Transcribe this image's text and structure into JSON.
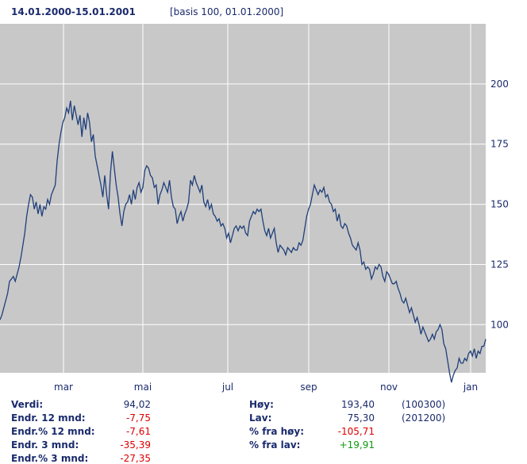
{
  "header": {
    "period": "14.01.2000-15.01.2001",
    "basis": "[basis 100, 01.01.2000]"
  },
  "colors": {
    "plot_bg": "#c8c8c8",
    "grid": "#ffffff",
    "line": "#1f3f7a",
    "label": "#1a2a6c",
    "negative": "#dd0000",
    "positive": "#119911"
  },
  "chart_data": {
    "type": "line",
    "x_tick_labels": [
      "mar",
      "mai",
      "jul",
      "sep",
      "nov",
      "jan"
    ],
    "y_ticks": [
      100,
      125,
      150,
      175,
      200
    ],
    "ylim": [
      80,
      225
    ],
    "grid": true,
    "y_axis_position": "right",
    "series": [
      {
        "values": [
          102,
          104,
          107,
          110,
          113,
          118,
          119,
          120,
          118,
          121,
          124,
          128,
          133,
          138,
          145,
          150,
          154,
          153,
          148,
          151,
          146,
          150,
          145,
          149,
          148,
          152,
          150,
          154,
          156,
          158,
          168,
          175,
          180,
          184,
          186,
          190,
          188,
          193,
          185,
          191,
          187,
          183,
          187,
          178,
          186,
          181,
          188,
          184,
          176,
          179,
          170,
          166,
          162,
          158,
          153,
          162,
          154,
          148,
          163,
          172,
          165,
          158,
          153,
          146,
          141,
          147,
          150,
          151,
          154,
          150,
          156,
          152,
          157,
          159,
          155,
          157,
          164,
          166,
          165,
          162,
          161,
          157,
          158,
          150,
          154,
          156,
          159,
          157,
          155,
          160,
          153,
          149,
          148,
          142,
          145,
          147,
          143,
          146,
          148,
          151,
          160,
          158,
          162,
          159,
          157,
          155,
          158,
          151,
          149,
          152,
          148,
          150,
          146,
          145,
          143,
          144,
          141,
          142,
          140,
          136,
          138,
          134,
          137,
          140,
          141,
          139,
          141,
          140,
          141,
          138,
          137,
          143,
          145,
          147,
          146,
          148,
          147,
          148,
          143,
          139,
          137,
          140,
          136,
          138,
          140,
          134,
          130,
          133,
          132,
          131,
          129,
          132,
          131,
          130,
          132,
          131,
          131,
          134,
          133,
          135,
          140,
          145,
          148,
          150,
          154,
          158,
          156,
          154,
          156,
          155,
          157,
          153,
          154,
          151,
          150,
          147,
          148,
          143,
          146,
          141,
          140,
          142,
          141,
          138,
          136,
          133,
          132,
          131,
          134,
          131,
          125,
          126,
          123,
          124,
          123,
          119,
          121,
          124,
          123,
          125,
          124,
          120,
          118,
          122,
          121,
          119,
          117,
          117,
          118,
          115,
          113,
          110,
          109,
          111,
          108,
          105,
          107,
          104,
          101,
          103,
          100,
          96,
          99,
          97,
          95,
          93,
          94,
          96,
          94,
          97,
          98,
          100,
          98,
          92,
          90,
          85,
          80,
          76,
          79,
          81,
          82,
          86,
          84,
          84,
          86,
          85,
          88,
          89,
          87,
          90,
          86,
          89,
          88,
          91,
          91,
          94
        ]
      }
    ]
  },
  "stats_left": [
    {
      "label": "Verdi:",
      "value": "94,02",
      "tone": "normal"
    },
    {
      "label": "Endr. 12 mnd:",
      "value": "-7,75",
      "tone": "negative"
    },
    {
      "label": "Endr.% 12 mnd:",
      "value": "-7,61",
      "tone": "negative"
    },
    {
      "label": "Endr. 3 mnd:",
      "value": "-35,39",
      "tone": "negative"
    },
    {
      "label": "Endr.% 3 mnd:",
      "value": "-27,35",
      "tone": "negative"
    }
  ],
  "stats_right": [
    {
      "label": "Høy:",
      "value": "193,40",
      "note": "(100300)",
      "tone": "normal"
    },
    {
      "label": "Lav:",
      "value": "75,30",
      "note": "(201200)",
      "tone": "normal"
    },
    {
      "label": "% fra høy:",
      "value": "-105,71",
      "note": "",
      "tone": "negative"
    },
    {
      "label": "% fra lav:",
      "value": "+19,91",
      "note": "",
      "tone": "positive"
    }
  ]
}
